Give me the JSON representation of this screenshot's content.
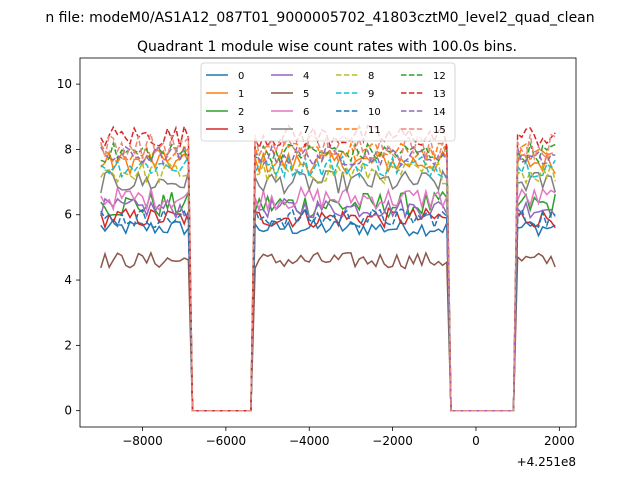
{
  "chart_data": {
    "type": "line",
    "suptitle": "n file: modeM0/AS1A12_087T01_9000005702_41803cztM0_level2_quad_clean",
    "title": "Quadrant 1 module wise count rates with 100.0s bins.",
    "xlabel": "",
    "ylabel": "",
    "x_offset_label": "+4.251e8",
    "xlim": [
      -9500,
      2400
    ],
    "ylim": [
      -0.5,
      10.8
    ],
    "xticks": [
      -8000,
      -6000,
      -4000,
      -2000,
      0,
      2000
    ],
    "xtick_labels": [
      "−8000",
      "−6000",
      "−4000",
      "−2000",
      "0",
      "2000"
    ],
    "yticks": [
      0,
      2,
      4,
      6,
      8,
      10
    ],
    "ytick_labels": [
      "0",
      "2",
      "4",
      "6",
      "8",
      "10"
    ],
    "grid": false,
    "legend": {
      "placement": "top-center",
      "columns": 4
    },
    "segments": [
      {
        "name": "active-1",
        "x_start": -9000,
        "x_end": -6900
      },
      {
        "name": "gap-1",
        "x_start": -6800,
        "x_end": -5500
      },
      {
        "name": "active-2",
        "x_start": -5300,
        "x_end": -700
      },
      {
        "name": "gap-2",
        "x_start": -600,
        "x_end": 900
      },
      {
        "name": "active-3",
        "x_start": 1000,
        "x_end": 1900
      }
    ],
    "series": [
      {
        "name": "0",
        "color": "#1f77b4",
        "dash": "solid",
        "level": 5.6,
        "noise": 0.25
      },
      {
        "name": "1",
        "color": "#ff7f0e",
        "dash": "solid",
        "level": 7.6,
        "noise": 0.35
      },
      {
        "name": "2",
        "color": "#2ca02c",
        "dash": "solid",
        "level": 6.3,
        "noise": 0.4
      },
      {
        "name": "3",
        "color": "#d62728",
        "dash": "solid",
        "level": 5.9,
        "noise": 0.3
      },
      {
        "name": "4",
        "color": "#9467bd",
        "dash": "solid",
        "level": 6.2,
        "noise": 0.3
      },
      {
        "name": "5",
        "color": "#8c564b",
        "dash": "solid",
        "level": 4.6,
        "noise": 0.25
      },
      {
        "name": "6",
        "color": "#e377c2",
        "dash": "solid",
        "level": 6.5,
        "noise": 0.35
      },
      {
        "name": "7",
        "color": "#7f7f7f",
        "dash": "solid",
        "level": 7.0,
        "noise": 0.35
      },
      {
        "name": "8",
        "color": "#bcbd22",
        "dash": "dashed",
        "level": 7.3,
        "noise": 0.35
      },
      {
        "name": "9",
        "color": "#17becf",
        "dash": "dashed",
        "level": 7.5,
        "noise": 0.35
      },
      {
        "name": "10",
        "color": "#1f77b4",
        "dash": "dashed",
        "level": 5.9,
        "noise": 0.3
      },
      {
        "name": "11",
        "color": "#ff7f0e",
        "dash": "dashed",
        "level": 7.9,
        "noise": 0.3
      },
      {
        "name": "12",
        "color": "#2ca02c",
        "dash": "dashed",
        "level": 7.9,
        "noise": 0.3
      },
      {
        "name": "13",
        "color": "#d62728",
        "dash": "dashed",
        "level": 8.4,
        "noise": 0.35
      },
      {
        "name": "14",
        "color": "#9467bd",
        "dash": "dashed",
        "level": 7.8,
        "noise": 0.3
      },
      {
        "name": "15",
        "color": "#e78a7e",
        "dash": "dashed",
        "level": 8.1,
        "noise": 0.4
      }
    ]
  }
}
